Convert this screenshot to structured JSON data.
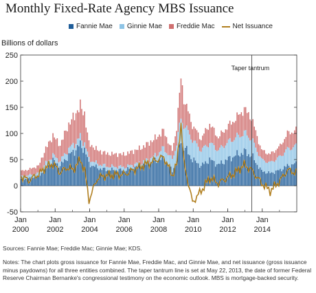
{
  "title": "Monthly Fixed-Rate Agency MBS Issuance",
  "sources": "Sources: Fannie Mae; Freddie Mac; Ginnie Mae; KDS.",
  "notes": "Notes: The chart plots gross issuance for Fannie Mae, Freddie Mac, and Ginnie Mae, and net issuance (gross issuance minus paydowns) for all three entities combined. The taper tantrum line is set at May 22, 2013, the date of former Federal Reserve Chairman Bernanke's congressional testimony on the economic outlook. MBS is mortgage-backed security.",
  "colors": {
    "fannie": "#1f5d99",
    "ginnie": "#8ec4e6",
    "freddie": "#cf6f6f",
    "net": "#b07e1e"
  },
  "chart_data": {
    "type": "bar",
    "ylabel": "Billions of dollars",
    "ylim": [
      -50,
      250
    ],
    "yticks": [
      -50,
      0,
      50,
      100,
      150,
      200,
      250
    ],
    "xticks": [
      {
        "year": "2000",
        "label": "Jan"
      },
      {
        "year": "2002",
        "label": "Jan"
      },
      {
        "year": "2004",
        "label": "Jan"
      },
      {
        "year": "2006",
        "label": "Jan"
      },
      {
        "year": "2008",
        "label": "Jan"
      },
      {
        "year": "2010",
        "label": "Jan"
      },
      {
        "year": "2012",
        "label": "Jan"
      },
      {
        "year": "2014",
        "label": "Jan"
      }
    ],
    "x_start": "2000-01",
    "x_end": "2015-12",
    "annotation": {
      "label": "Taper tantrum",
      "date": "2013-05-22"
    },
    "series_names": [
      "Fannie Mae",
      "Ginnie Mae",
      "Freddie Mac",
      "Net Issuance"
    ],
    "stack_anchors": [
      {
        "date": "2000-01",
        "fannie": 12,
        "ginnie": 6,
        "freddie": 10
      },
      {
        "date": "2000-06",
        "fannie": 14,
        "ginnie": 6,
        "freddie": 11
      },
      {
        "date": "2001-01",
        "fannie": 18,
        "ginnie": 6,
        "freddie": 14
      },
      {
        "date": "2001-06",
        "fannie": 34,
        "ginnie": 9,
        "freddie": 28
      },
      {
        "date": "2001-11",
        "fannie": 48,
        "ginnie": 10,
        "freddie": 38
      },
      {
        "date": "2002-04",
        "fannie": 38,
        "ginnie": 10,
        "freddie": 30
      },
      {
        "date": "2002-09",
        "fannie": 55,
        "ginnie": 12,
        "freddie": 45
      },
      {
        "date": "2003-01",
        "fannie": 65,
        "ginnie": 13,
        "freddie": 52
      },
      {
        "date": "2003-06",
        "fannie": 78,
        "ginnie": 14,
        "freddie": 60
      },
      {
        "date": "2003-09",
        "fannie": 70,
        "ginnie": 12,
        "freddie": 55
      },
      {
        "date": "2003-12",
        "fannie": 42,
        "ginnie": 9,
        "freddie": 30
      },
      {
        "date": "2004-06",
        "fannie": 34,
        "ginnie": 8,
        "freddie": 26
      },
      {
        "date": "2005-01",
        "fannie": 30,
        "ginnie": 7,
        "freddie": 24
      },
      {
        "date": "2006-01",
        "fannie": 30,
        "ginnie": 6,
        "freddie": 24
      },
      {
        "date": "2007-01",
        "fannie": 38,
        "ginnie": 7,
        "freddie": 28
      },
      {
        "date": "2007-10",
        "fannie": 48,
        "ginnie": 9,
        "freddie": 33
      },
      {
        "date": "2008-04",
        "fannie": 52,
        "ginnie": 20,
        "freddie": 33
      },
      {
        "date": "2008-10",
        "fannie": 28,
        "ginnie": 22,
        "freddie": 16
      },
      {
        "date": "2009-01",
        "fannie": 50,
        "ginnie": 30,
        "freddie": 32
      },
      {
        "date": "2009-04",
        "fannie": 88,
        "ginnie": 42,
        "freddie": 75
      },
      {
        "date": "2009-06",
        "fannie": 75,
        "ginnie": 42,
        "freddie": 50
      },
      {
        "date": "2009-12",
        "fannie": 50,
        "ginnie": 38,
        "freddie": 28
      },
      {
        "date": "2010-06",
        "fannie": 38,
        "ginnie": 30,
        "freddie": 22
      },
      {
        "date": "2010-12",
        "fannie": 50,
        "ginnie": 32,
        "freddie": 36
      },
      {
        "date": "2011-06",
        "fannie": 40,
        "ginnie": 28,
        "freddie": 24
      },
      {
        "date": "2011-12",
        "fannie": 50,
        "ginnie": 32,
        "freddie": 30
      },
      {
        "date": "2012-06",
        "fannie": 58,
        "ginnie": 34,
        "freddie": 36
      },
      {
        "date": "2012-12",
        "fannie": 65,
        "ginnie": 36,
        "freddie": 46
      },
      {
        "date": "2013-05",
        "fannie": 58,
        "ginnie": 32,
        "freddie": 40
      },
      {
        "date": "2013-12",
        "fannie": 28,
        "ginnie": 22,
        "freddie": 18
      },
      {
        "date": "2014-06",
        "fannie": 24,
        "ginnie": 20,
        "freddie": 16
      },
      {
        "date": "2015-01",
        "fannie": 30,
        "ginnie": 26,
        "freddie": 20
      },
      {
        "date": "2015-06",
        "fannie": 38,
        "ginnie": 32,
        "freddie": 30
      },
      {
        "date": "2015-12",
        "fannie": 42,
        "ginnie": 34,
        "freddie": 30
      }
    ],
    "net_anchors": [
      {
        "date": "2000-01",
        "value": 18
      },
      {
        "date": "2000-06",
        "value": 10
      },
      {
        "date": "2001-01",
        "value": 22
      },
      {
        "date": "2001-06",
        "value": 35
      },
      {
        "date": "2001-11",
        "value": 42
      },
      {
        "date": "2002-04",
        "value": 25
      },
      {
        "date": "2002-09",
        "value": 35
      },
      {
        "date": "2003-01",
        "value": 30
      },
      {
        "date": "2003-06",
        "value": 50
      },
      {
        "date": "2003-09",
        "value": 30
      },
      {
        "date": "2003-12",
        "value": -28
      },
      {
        "date": "2004-06",
        "value": 15
      },
      {
        "date": "2005-01",
        "value": 20
      },
      {
        "date": "2006-01",
        "value": 22
      },
      {
        "date": "2007-01",
        "value": 38
      },
      {
        "date": "2007-10",
        "value": 48
      },
      {
        "date": "2008-04",
        "value": 55
      },
      {
        "date": "2008-10",
        "value": 20
      },
      {
        "date": "2009-01",
        "value": 40
      },
      {
        "date": "2009-04",
        "value": 120
      },
      {
        "date": "2009-06",
        "value": 45
      },
      {
        "date": "2009-12",
        "value": -32
      },
      {
        "date": "2010-06",
        "value": -10
      },
      {
        "date": "2010-12",
        "value": 15
      },
      {
        "date": "2011-06",
        "value": 5
      },
      {
        "date": "2011-12",
        "value": 15
      },
      {
        "date": "2012-06",
        "value": 25
      },
      {
        "date": "2012-12",
        "value": 40
      },
      {
        "date": "2013-05",
        "value": 30
      },
      {
        "date": "2013-12",
        "value": 5
      },
      {
        "date": "2014-06",
        "value": -10
      },
      {
        "date": "2015-01",
        "value": 10
      },
      {
        "date": "2015-06",
        "value": 30
      },
      {
        "date": "2015-12",
        "value": 25
      }
    ]
  }
}
